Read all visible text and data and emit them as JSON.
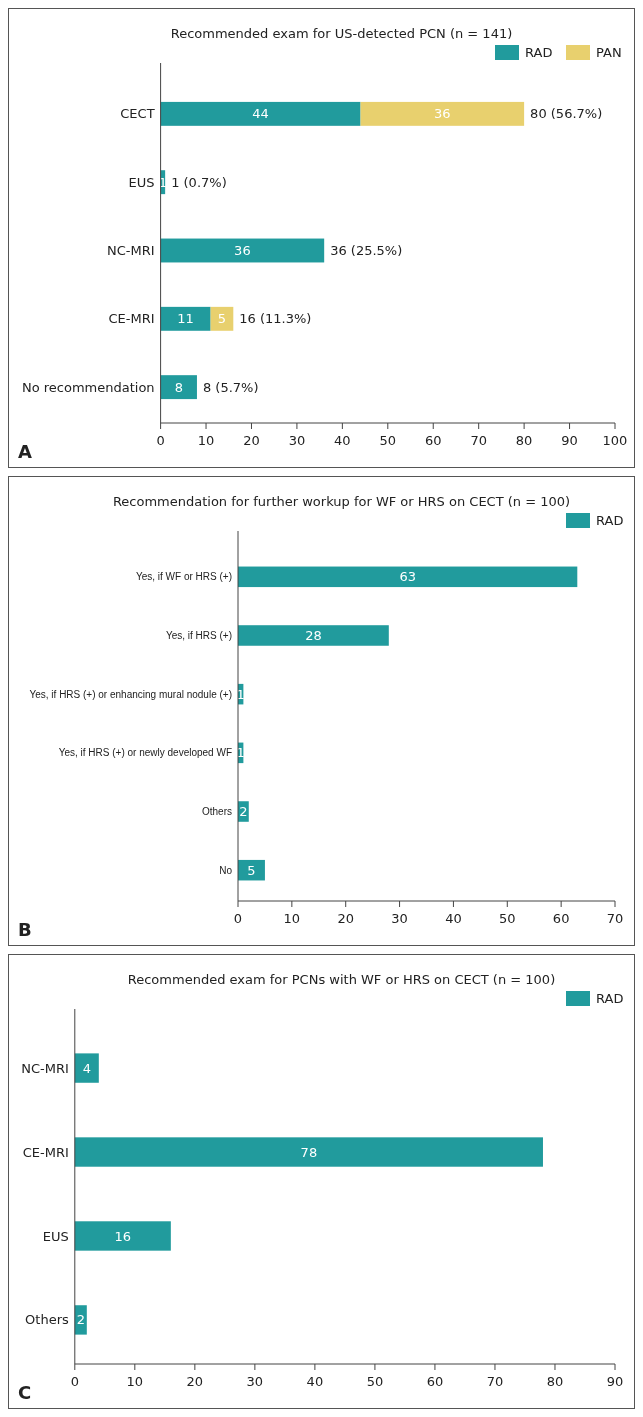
{
  "chart_data": [
    {
      "type": "bar",
      "orientation": "horizontal",
      "stacked": true,
      "title": "Recommended exam for US-detected PCN (n = 141)",
      "categories": [
        "CECT",
        "EUS",
        "NC-MRI",
        "CE-MRI",
        "No recommendation"
      ],
      "series": [
        {
          "name": "RAD",
          "color": "#219b9d",
          "values": [
            44,
            1,
            36,
            11,
            8
          ]
        },
        {
          "name": "PAN",
          "color": "#e8d06e",
          "values": [
            36,
            null,
            null,
            5,
            null
          ]
        }
      ],
      "data_labels": true,
      "totals": [
        "80 (56.7%)",
        "1 (0.7%)",
        "36 (25.5%)",
        "16 (11.3%)",
        "8 (5.7%)"
      ],
      "xlim": [
        0,
        100
      ],
      "xticks": [
        0,
        10,
        20,
        30,
        40,
        50,
        60,
        70,
        80,
        90,
        100
      ],
      "legend": "top right",
      "annotations": [
        "A"
      ]
    },
    {
      "type": "bar",
      "orientation": "horizontal",
      "title": "Recommendation for further workup for WF or HRS on CECT (n = 100)",
      "categories": [
        "Yes, if WF or HRS (+)",
        "Yes, if HRS (+)",
        "Yes, if HRS (+) or enhancing mural nodule (+)",
        "Yes, if HRS (+) or newly developed WF",
        "Others",
        "No"
      ],
      "series": [
        {
          "name": "RAD",
          "color": "#219b9d",
          "values": [
            63,
            28,
            1,
            1,
            2,
            5
          ]
        }
      ],
      "data_labels": true,
      "xlim": [
        0,
        70
      ],
      "xticks": [
        0,
        10,
        20,
        30,
        40,
        50,
        60,
        70
      ],
      "legend": "top right",
      "annotations": [
        "B"
      ]
    },
    {
      "type": "bar",
      "orientation": "horizontal",
      "title": "Recommended exam for PCNs with WF or HRS on CECT (n = 100)",
      "categories": [
        "NC-MRI",
        "CE-MRI",
        "EUS",
        "Others"
      ],
      "series": [
        {
          "name": "RAD",
          "color": "#219b9d",
          "values": [
            4,
            78,
            16,
            2
          ]
        }
      ],
      "data_labels": true,
      "xlim": [
        0,
        90
      ],
      "xticks": [
        0,
        10,
        20,
        30,
        40,
        50,
        60,
        70,
        80,
        90
      ],
      "legend": "top right",
      "annotations": [
        "C"
      ]
    }
  ]
}
